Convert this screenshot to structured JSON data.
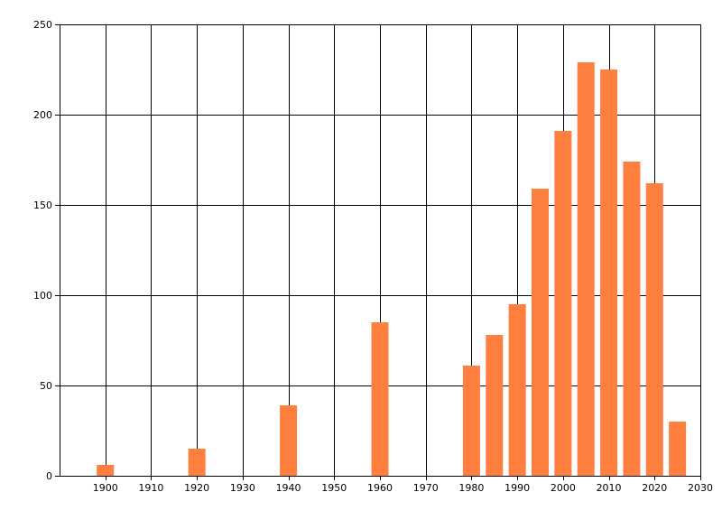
{
  "chart_data": {
    "type": "bar",
    "x": [
      1900,
      1920,
      1940,
      1960,
      1980,
      1985,
      1990,
      1995,
      2000,
      2005,
      2010,
      2015,
      2020,
      2025
    ],
    "values": [
      6,
      15,
      39,
      85,
      61,
      78,
      95,
      159,
      191,
      229,
      225,
      174,
      162,
      30
    ],
    "xlim": [
      1890,
      2030
    ],
    "ylim": [
      0,
      250
    ],
    "xticks": [
      1900,
      1910,
      1920,
      1930,
      1940,
      1950,
      1960,
      1970,
      1980,
      1990,
      2000,
      2010,
      2020,
      2030
    ],
    "yticks": [
      0,
      50,
      100,
      150,
      200,
      250
    ],
    "grid": true,
    "title": "",
    "xlabel": "",
    "ylabel": "",
    "bar_color": "#ff7f3f"
  }
}
